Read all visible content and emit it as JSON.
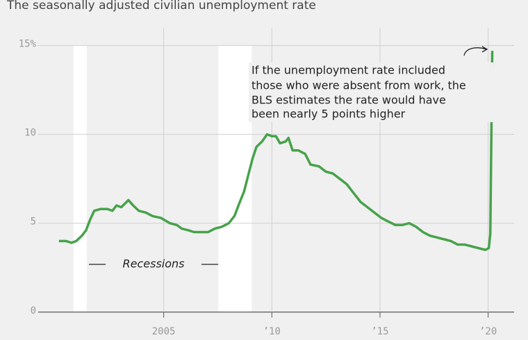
{
  "chart_data": {
    "type": "line",
    "title": "The seasonally adjusted civilian unemployment rate",
    "annotation": [
      "If the unemployment rate included",
      "those who were absent from work, the",
      "BLS estimates the rate would have",
      "been nearly 5 points higher"
    ],
    "recession_label": "Recessions",
    "recessions": [
      [
        2000.83,
        2001.44
      ],
      [
        2007.53,
        2009.07
      ]
    ],
    "x": [
      2000.16,
      2000.32,
      2000.48,
      2000.74,
      2000.96,
      2001.22,
      2001.41,
      2001.6,
      2001.79,
      2002.08,
      2002.4,
      2002.63,
      2002.82,
      2003.04,
      2003.37,
      2003.59,
      2003.85,
      2004.17,
      2004.49,
      2004.87,
      2005.29,
      2005.61,
      2005.83,
      2006.15,
      2006.41,
      2006.73,
      2007.05,
      2007.37,
      2007.69,
      2008.01,
      2008.27,
      2008.49,
      2008.72,
      2008.91,
      2009.1,
      2009.29,
      2009.55,
      2009.78,
      2010.0,
      2010.19,
      2010.38,
      2010.64,
      2010.77,
      2010.96,
      2011.22,
      2011.54,
      2011.79,
      2012.18,
      2012.5,
      2012.82,
      2013.14,
      2013.46,
      2013.78,
      2014.1,
      2014.42,
      2014.74,
      2015.06,
      2015.38,
      2015.71,
      2016.03,
      2016.35,
      2016.67,
      2016.99,
      2017.31,
      2017.63,
      2017.95,
      2018.27,
      2018.59,
      2018.91,
      2019.23,
      2019.55,
      2019.87,
      2020.03,
      2020.1,
      2020.19
    ],
    "series": [
      {
        "name": "Unemployment rate",
        "color": "#46a24a",
        "values": [
          4.0,
          4.0,
          4.0,
          3.9,
          4.0,
          4.3,
          4.6,
          5.2,
          5.7,
          5.8,
          5.8,
          5.7,
          6.0,
          5.9,
          6.3,
          6.0,
          5.7,
          5.6,
          5.4,
          5.3,
          5.0,
          4.9,
          4.7,
          4.6,
          4.5,
          4.5,
          4.5,
          4.7,
          4.8,
          5.0,
          5.4,
          6.1,
          6.8,
          7.7,
          8.6,
          9.3,
          9.6,
          10.0,
          9.9,
          9.9,
          9.5,
          9.6,
          9.8,
          9.1,
          9.1,
          8.9,
          8.3,
          8.2,
          7.9,
          7.8,
          7.5,
          7.2,
          6.7,
          6.2,
          5.9,
          5.6,
          5.3,
          5.1,
          4.9,
          4.9,
          5.0,
          4.8,
          4.5,
          4.3,
          4.2,
          4.1,
          4.0,
          3.8,
          3.8,
          3.7,
          3.6,
          3.5,
          3.6,
          4.4,
          14.7
        ]
      }
    ],
    "xlim": [
      1999.2,
      2021.2
    ],
    "xticks": [
      2005,
      {
        "value": 2010,
        "label": "’10"
      },
      {
        "value": 2015,
        "label": "’15"
      },
      {
        "value": 2020,
        "label": "’20"
      }
    ],
    "ylim": [
      -0.4,
      16
    ],
    "yticks": [
      0,
      5,
      10,
      {
        "value": 15,
        "label": "15%"
      }
    ],
    "grid": true
  }
}
